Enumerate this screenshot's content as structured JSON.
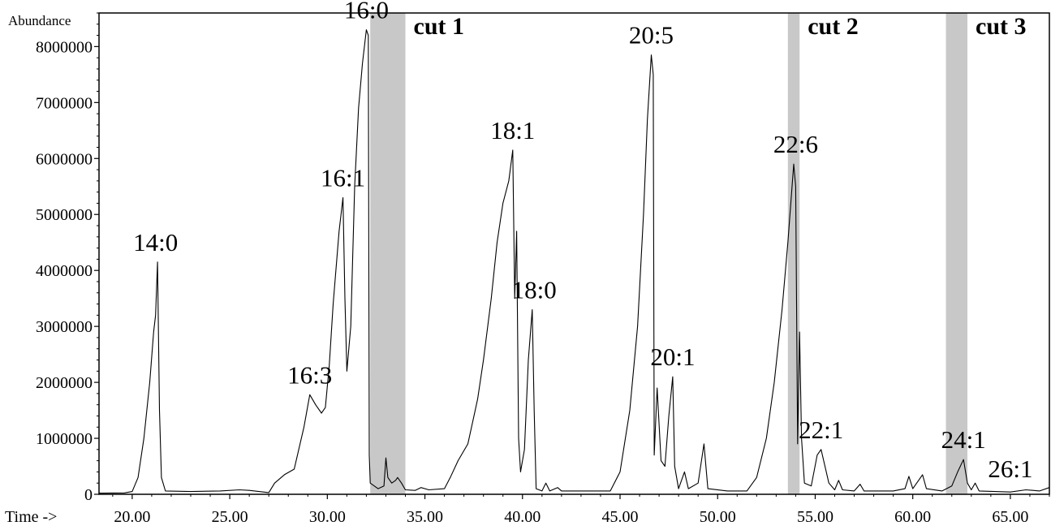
{
  "chart_data": {
    "type": "line",
    "title": "",
    "xlabel": "Time ->",
    "ylabel": "Abundance",
    "xlim": [
      18.3,
      67.0
    ],
    "ylim": [
      0,
      8600000
    ],
    "x_ticks": [
      {
        "value": 20,
        "label": "20.00"
      },
      {
        "value": 25,
        "label": "25.00"
      },
      {
        "value": 30,
        "label": "30.00"
      },
      {
        "value": 35,
        "label": "35.00"
      },
      {
        "value": 40,
        "label": "40.00"
      },
      {
        "value": 45,
        "label": "45.00"
      },
      {
        "value": 50,
        "label": "50.00"
      },
      {
        "value": 55,
        "label": "55.00"
      },
      {
        "value": 60,
        "label": "60.00"
      },
      {
        "value": 65,
        "label": "65.00"
      }
    ],
    "y_ticks": [
      {
        "value": 0,
        "label": "0"
      },
      {
        "value": 1000000,
        "label": "1000000"
      },
      {
        "value": 2000000,
        "label": "2000000"
      },
      {
        "value": 3000000,
        "label": "3000000"
      },
      {
        "value": 4000000,
        "label": "4000000"
      },
      {
        "value": 5000000,
        "label": "5000000"
      },
      {
        "value": 6000000,
        "label": "6000000"
      },
      {
        "value": 7000000,
        "label": "7000000"
      },
      {
        "value": 8000000,
        "label": "8000000"
      }
    ],
    "cut_regions": [
      {
        "label": "cut 1",
        "start": 32.2,
        "end": 34.0
      },
      {
        "label": "cut 2",
        "start": 53.6,
        "end": 54.2
      },
      {
        "label": "cut 3",
        "start": 61.7,
        "end": 62.8
      }
    ],
    "peak_labels": [
      {
        "label": "14:0",
        "x": 21.2,
        "y": 4150000
      },
      {
        "label": "16:3",
        "x": 29.1,
        "y": 1780000
      },
      {
        "label": "16:1",
        "x": 30.8,
        "y": 5300000
      },
      {
        "label": "16:0",
        "x": 32.0,
        "y": 8300000
      },
      {
        "label": "18:1",
        "x": 39.5,
        "y": 6150000
      },
      {
        "label": "18:0",
        "x": 40.6,
        "y": 3300000
      },
      {
        "label": "20:5",
        "x": 46.6,
        "y": 7850000
      },
      {
        "label": "20:1",
        "x": 47.7,
        "y": 2100000
      },
      {
        "label": "22:6",
        "x": 54.0,
        "y": 5900000
      },
      {
        "label": "22:1",
        "x": 55.3,
        "y": 800000
      },
      {
        "label": "24:1",
        "x": 62.6,
        "y": 620000
      },
      {
        "label": "26:1",
        "x": 65.0,
        "y": 100000
      }
    ],
    "series": [
      {
        "points": [
          [
            18.3,
            20000
          ],
          [
            19.6,
            25000
          ],
          [
            20.0,
            50000
          ],
          [
            20.3,
            300000
          ],
          [
            20.6,
            1000000
          ],
          [
            20.9,
            2000000
          ],
          [
            21.1,
            2900000
          ],
          [
            21.2,
            3200000
          ],
          [
            21.3,
            4150000
          ],
          [
            21.4,
            1500000
          ],
          [
            21.5,
            300000
          ],
          [
            21.7,
            60000
          ],
          [
            23.0,
            50000
          ],
          [
            24.5,
            60000
          ],
          [
            25.5,
            80000
          ],
          [
            26.0,
            70000
          ],
          [
            27.0,
            30000
          ],
          [
            27.3,
            200000
          ],
          [
            27.8,
            350000
          ],
          [
            28.3,
            450000
          ],
          [
            28.8,
            1200000
          ],
          [
            29.1,
            1780000
          ],
          [
            29.4,
            1600000
          ],
          [
            29.7,
            1450000
          ],
          [
            29.9,
            1550000
          ],
          [
            30.1,
            2300000
          ],
          [
            30.3,
            3400000
          ],
          [
            30.6,
            4700000
          ],
          [
            30.8,
            5300000
          ],
          [
            30.9,
            3500000
          ],
          [
            31.0,
            2200000
          ],
          [
            31.2,
            3000000
          ],
          [
            31.4,
            5500000
          ],
          [
            31.6,
            6900000
          ],
          [
            31.8,
            7700000
          ],
          [
            32.0,
            8300000
          ],
          [
            32.1,
            8200000
          ],
          [
            32.15,
            700000
          ],
          [
            32.2,
            200000
          ],
          [
            32.6,
            100000
          ],
          [
            32.9,
            150000
          ],
          [
            33.0,
            650000
          ],
          [
            33.1,
            300000
          ],
          [
            33.3,
            200000
          ],
          [
            33.5,
            250000
          ],
          [
            33.6,
            300000
          ],
          [
            33.8,
            200000
          ],
          [
            34.0,
            80000
          ],
          [
            34.5,
            70000
          ],
          [
            34.8,
            120000
          ],
          [
            35.2,
            80000
          ],
          [
            36.0,
            100000
          ],
          [
            36.3,
            300000
          ],
          [
            36.7,
            600000
          ],
          [
            37.2,
            900000
          ],
          [
            37.7,
            1700000
          ],
          [
            38.0,
            2400000
          ],
          [
            38.4,
            3500000
          ],
          [
            38.7,
            4500000
          ],
          [
            39.0,
            5200000
          ],
          [
            39.3,
            5600000
          ],
          [
            39.5,
            6150000
          ],
          [
            39.6,
            3500000
          ],
          [
            39.7,
            4700000
          ],
          [
            39.8,
            1000000
          ],
          [
            39.9,
            400000
          ],
          [
            40.1,
            800000
          ],
          [
            40.3,
            2400000
          ],
          [
            40.5,
            3300000
          ],
          [
            40.6,
            1500000
          ],
          [
            40.7,
            100000
          ],
          [
            41.0,
            60000
          ],
          [
            41.2,
            200000
          ],
          [
            41.4,
            60000
          ],
          [
            41.8,
            120000
          ],
          [
            42.0,
            60000
          ],
          [
            44.5,
            60000
          ],
          [
            45.0,
            400000
          ],
          [
            45.5,
            1500000
          ],
          [
            45.9,
            3000000
          ],
          [
            46.2,
            5000000
          ],
          [
            46.4,
            6700000
          ],
          [
            46.6,
            7850000
          ],
          [
            46.7,
            7500000
          ],
          [
            46.75,
            700000
          ],
          [
            46.9,
            1900000
          ],
          [
            47.1,
            600000
          ],
          [
            47.3,
            500000
          ],
          [
            47.5,
            1400000
          ],
          [
            47.7,
            2100000
          ],
          [
            47.8,
            500000
          ],
          [
            48.0,
            100000
          ],
          [
            48.3,
            400000
          ],
          [
            48.5,
            100000
          ],
          [
            49.0,
            200000
          ],
          [
            49.3,
            900000
          ],
          [
            49.5,
            100000
          ],
          [
            50.5,
            60000
          ],
          [
            51.5,
            60000
          ],
          [
            52.0,
            300000
          ],
          [
            52.5,
            1000000
          ],
          [
            52.9,
            2000000
          ],
          [
            53.3,
            3300000
          ],
          [
            53.6,
            4500000
          ],
          [
            53.9,
            5900000
          ],
          [
            54.0,
            5500000
          ],
          [
            54.1,
            900000
          ],
          [
            54.2,
            2900000
          ],
          [
            54.3,
            1000000
          ],
          [
            54.45,
            200000
          ],
          [
            54.8,
            150000
          ],
          [
            55.1,
            700000
          ],
          [
            55.3,
            800000
          ],
          [
            55.5,
            500000
          ],
          [
            55.7,
            200000
          ],
          [
            56.0,
            80000
          ],
          [
            56.2,
            250000
          ],
          [
            56.4,
            80000
          ],
          [
            57.0,
            60000
          ],
          [
            57.3,
            180000
          ],
          [
            57.5,
            60000
          ],
          [
            59.0,
            60000
          ],
          [
            59.6,
            100000
          ],
          [
            59.8,
            320000
          ],
          [
            60.0,
            100000
          ],
          [
            60.5,
            350000
          ],
          [
            60.7,
            100000
          ],
          [
            61.5,
            60000
          ],
          [
            62.0,
            150000
          ],
          [
            62.3,
            400000
          ],
          [
            62.6,
            620000
          ],
          [
            62.8,
            200000
          ],
          [
            63.0,
            80000
          ],
          [
            63.2,
            200000
          ],
          [
            63.4,
            60000
          ],
          [
            65.0,
            40000
          ],
          [
            65.8,
            80000
          ],
          [
            66.5,
            60000
          ],
          [
            67.0,
            120000
          ]
        ]
      }
    ]
  }
}
